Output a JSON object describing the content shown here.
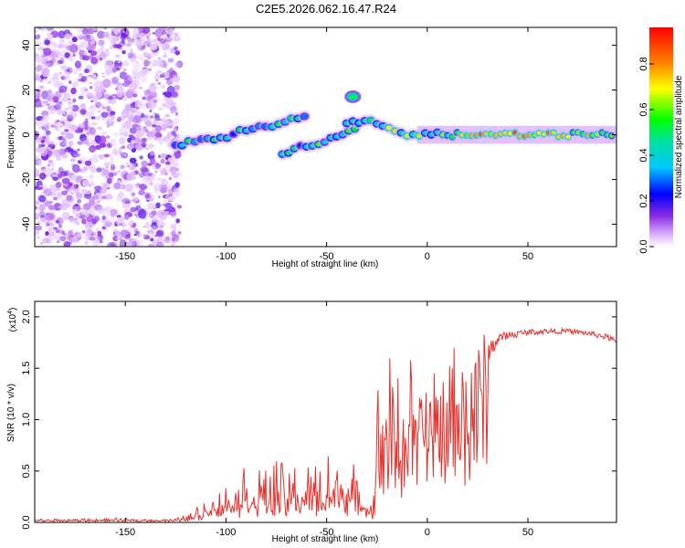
{
  "title": "C2E5.2026.062.16.47.R24",
  "chart_data": [
    {
      "type": "heatmap",
      "title": "C2E5.2026.062.16.47.R24",
      "xlabel": "Height of straight line (km)",
      "ylabel": "Frequency (Hz)",
      "xlim": [
        -195,
        94
      ],
      "ylim": [
        -50,
        48
      ],
      "x_ticks": [
        "-150",
        "-100",
        "-50",
        "0",
        "50"
      ],
      "x_tick_values": [
        -150,
        -100,
        -50,
        0,
        50
      ],
      "y_ticks": [
        "-40",
        "-20",
        "0",
        "20",
        "40"
      ],
      "y_tick_values": [
        -40,
        -20,
        0,
        20,
        40
      ],
      "noise_region_x": [
        -195,
        -123
      ],
      "signal_track": {
        "x": [
          -128,
          -120,
          -110,
          -100,
          -90,
          -80,
          -70,
          -60,
          -50,
          -40,
          -30,
          -20,
          -10,
          0,
          10,
          20,
          30,
          40,
          60,
          80,
          94
        ],
        "y": [
          -3,
          -5,
          -5,
          -4,
          -2,
          0,
          2,
          4,
          5,
          6,
          6,
          3,
          -1,
          0,
          0,
          0,
          0,
          0,
          0,
          0,
          0
        ]
      },
      "upper_branch": {
        "x": [
          -120,
          -110,
          -100,
          -90,
          -80,
          -70,
          -60
        ],
        "y": [
          -4,
          -2,
          -1,
          2,
          4,
          6,
          9
        ]
      },
      "lower_branch": {
        "x": [
          -72,
          -65,
          -58,
          -50,
          -42,
          -35
        ],
        "y": [
          -8,
          -6,
          -5,
          -2,
          0,
          2
        ]
      },
      "bright_spot": {
        "x": -37,
        "y": 17
      },
      "colorbar": {
        "label": "Normalized spectral amplitude",
        "range": [
          0,
          0.96
        ],
        "ticks": [
          "0.0",
          "0.2",
          "0.4",
          "0.6",
          "0.8"
        ],
        "tick_values": [
          0,
          0.2,
          0.4,
          0.6,
          0.8
        ]
      }
    },
    {
      "type": "line",
      "xlabel": "Height of straight line (km)",
      "ylabel": "SNR (10 * v/v)",
      "y_multiplier_label": "(x10",
      "y_multiplier_exp": "4",
      "y_multiplier_close": ")",
      "xlim": [
        -195,
        94
      ],
      "ylim": [
        0,
        2.15
      ],
      "x_ticks": [
        "-150",
        "-100",
        "-50",
        "0",
        "50"
      ],
      "x_tick_values": [
        -150,
        -100,
        -50,
        0,
        50
      ],
      "y_ticks": [
        "0.0",
        "0.5",
        "1.0",
        "1.5",
        "2.0"
      ],
      "y_tick_values": [
        0,
        0.5,
        1.0,
        1.5,
        2.0
      ],
      "series": [
        {
          "name": "SNR",
          "color": "#e8312c",
          "envelope_x": [
            -195,
            -125,
            -118,
            -112,
            -105,
            -100,
            -95,
            -90,
            -85,
            -80,
            -75,
            -70,
            -65,
            -60,
            -55,
            -50,
            -45,
            -40,
            -35,
            -30,
            -27,
            -25,
            -22,
            -20,
            -15,
            -10,
            -5,
            0,
            5,
            10,
            15,
            20,
            25,
            30,
            35,
            40,
            50,
            60,
            70,
            80,
            90,
            94
          ],
          "envelope_base": [
            0.02,
            0.02,
            0.04,
            0.08,
            0.12,
            0.15,
            0.15,
            0.18,
            0.18,
            0.15,
            0.18,
            0.15,
            0.2,
            0.18,
            0.2,
            0.22,
            0.18,
            0.2,
            0.15,
            0.12,
            0.1,
            0.5,
            0.7,
            0.75,
            0.75,
            0.8,
            0.85,
            0.85,
            0.95,
            1.0,
            1.1,
            1.25,
            1.45,
            1.65,
            1.78,
            1.82,
            1.85,
            1.86,
            1.86,
            1.84,
            1.8,
            1.75
          ],
          "envelope_amp": [
            0.02,
            0.02,
            0.06,
            0.12,
            0.18,
            0.25,
            0.3,
            0.4,
            0.45,
            0.45,
            0.5,
            0.4,
            0.45,
            0.4,
            0.45,
            0.55,
            0.5,
            0.6,
            0.35,
            0.15,
            0.1,
            0.9,
            0.95,
            0.95,
            0.9,
            0.9,
            0.8,
            0.7,
            0.7,
            0.75,
            0.55,
            0.45,
            0.35,
            0.22,
            0.12,
            0.08,
            0.06,
            0.05,
            0.05,
            0.05,
            0.06,
            0.06
          ]
        }
      ]
    }
  ]
}
